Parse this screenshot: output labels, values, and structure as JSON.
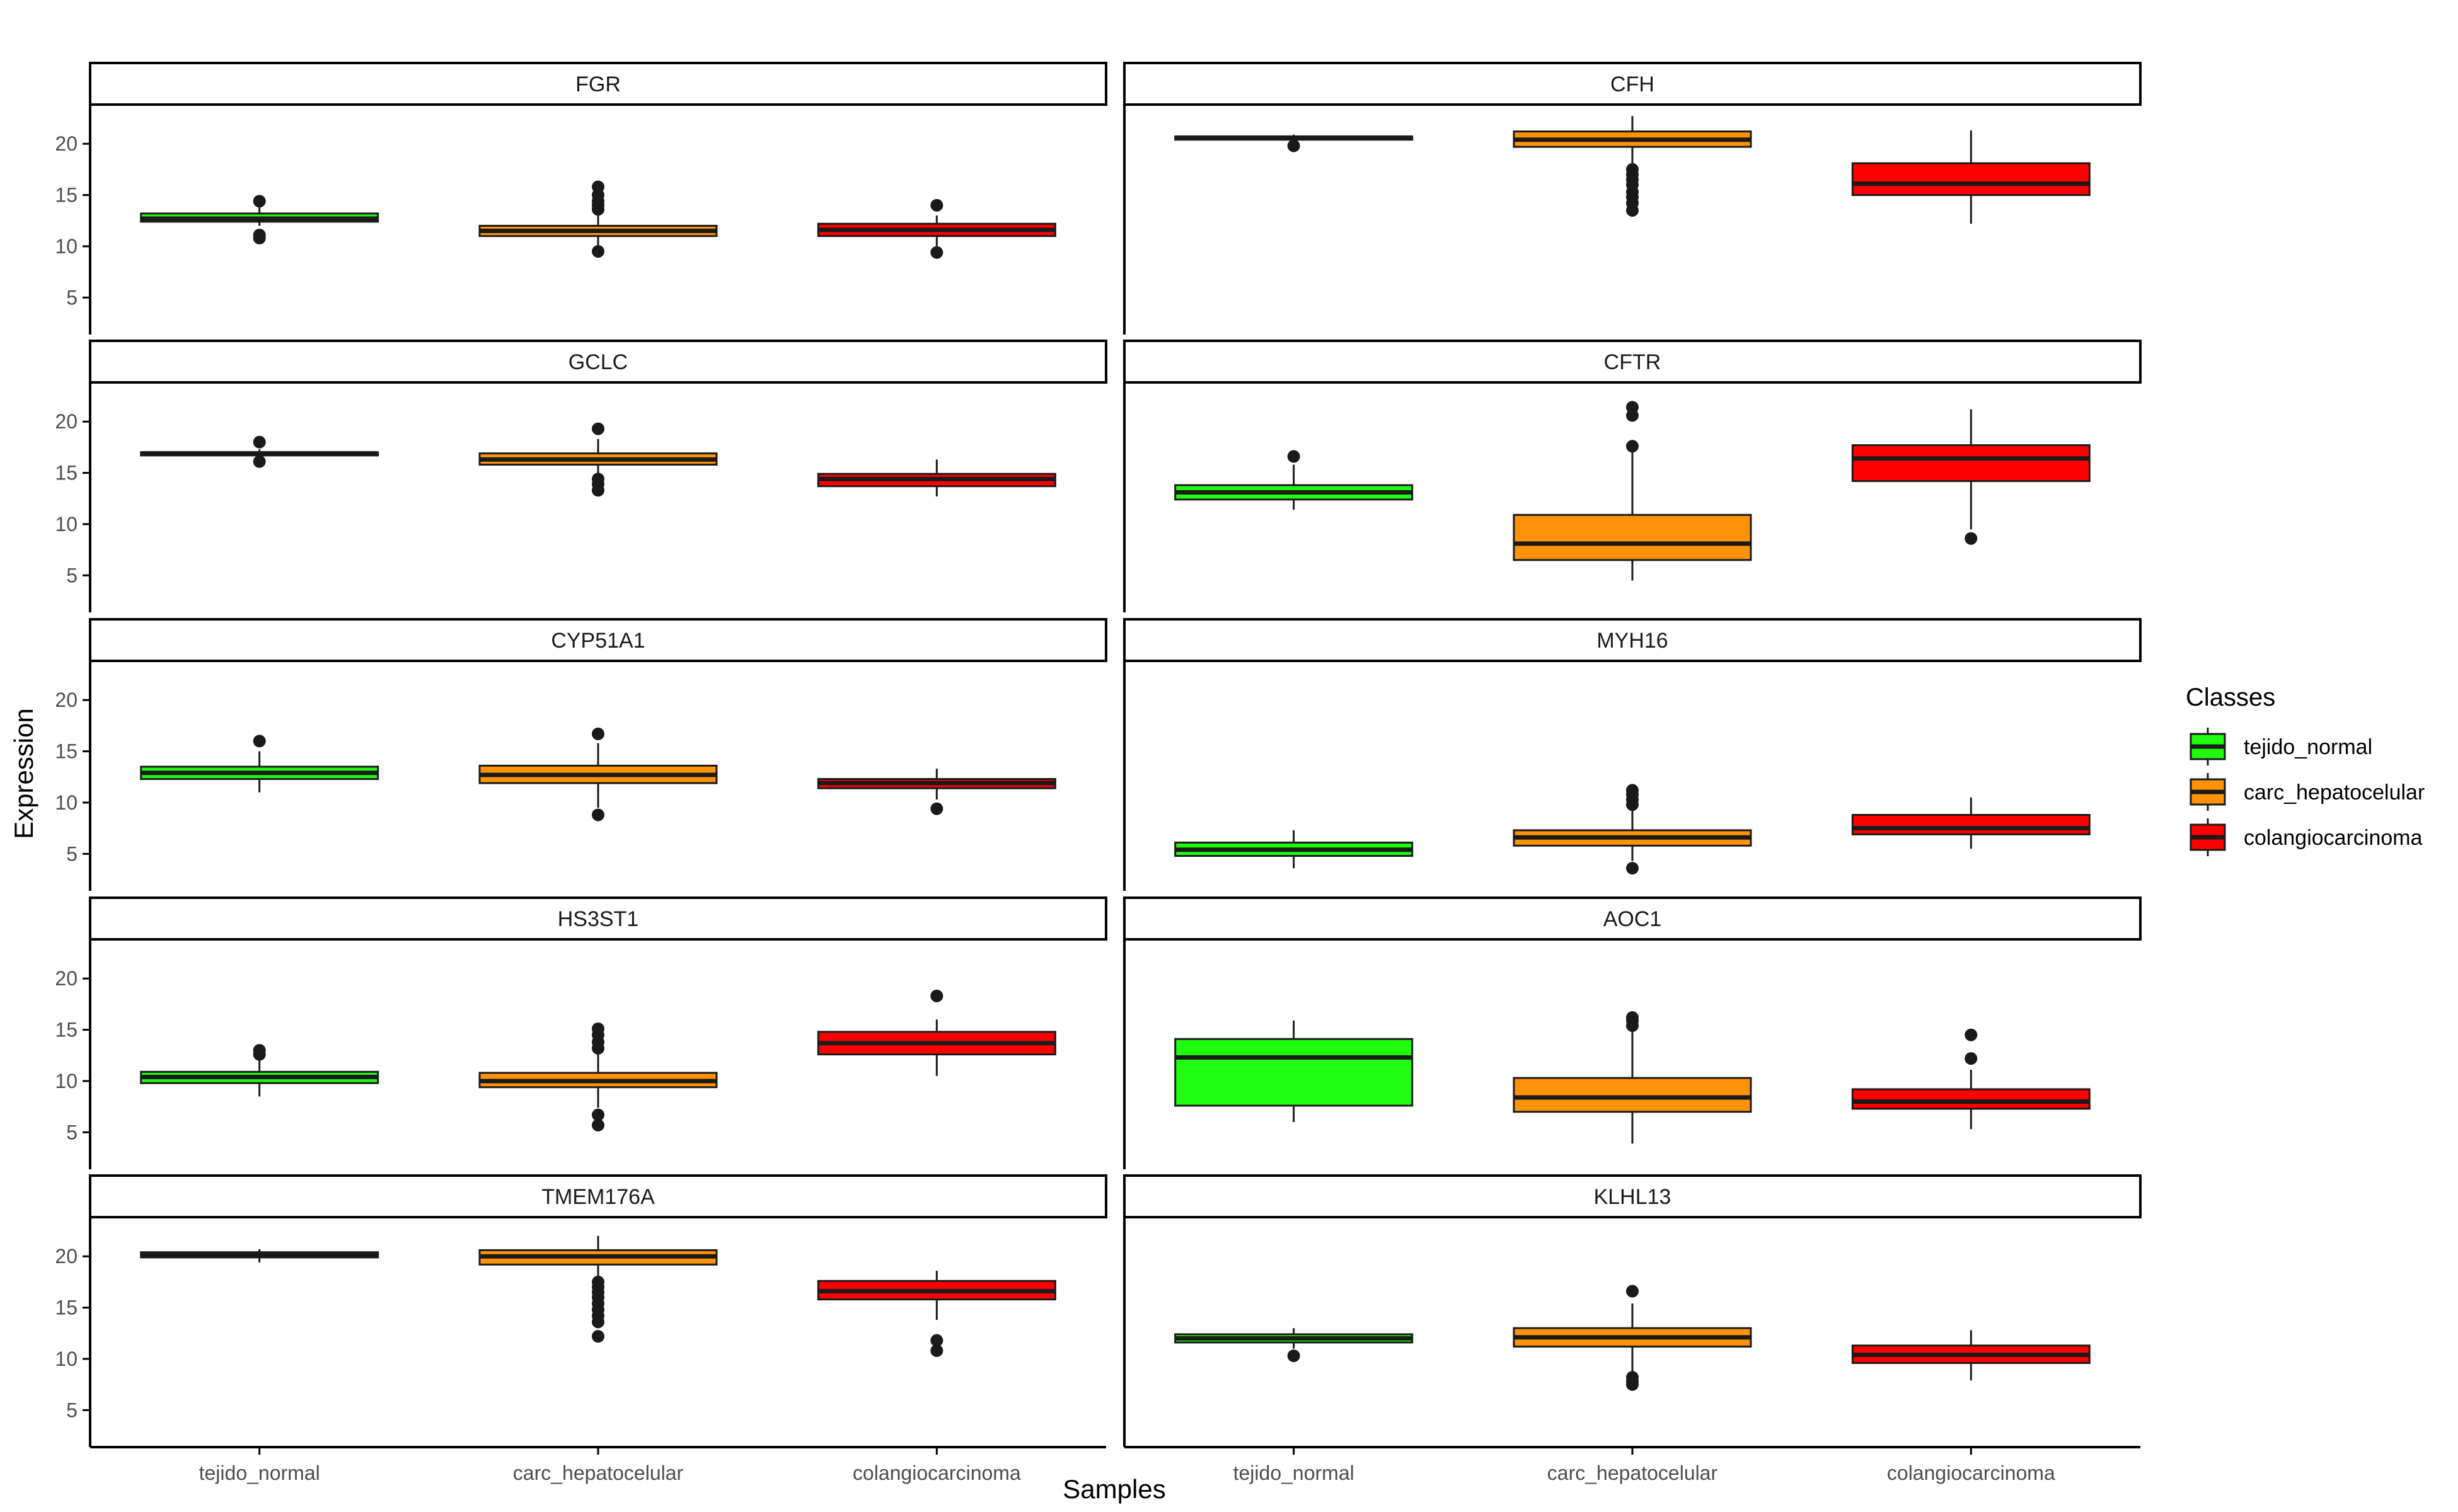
{
  "chart_data": {
    "type": "boxplot",
    "xlabel": "Samples",
    "ylabel": "Expression",
    "ylim": [
      2.5,
      23.7
    ],
    "yticks": [
      5,
      10,
      15,
      20
    ],
    "categories": [
      "tejido_normal",
      "carc_hepatocelular",
      "colangiocarcinoma"
    ],
    "colors": {
      "tejido_normal": "#1ffc10",
      "carc_hepatocelular": "#ff9308",
      "colangiocarcinoma": "#ff0000"
    },
    "legend": {
      "title": "Classes",
      "position": "right",
      "entries": [
        "tejido_normal",
        "carc_hepatocelular",
        "colangiocarcinoma"
      ]
    },
    "panels": [
      {
        "title": "FGR",
        "boxes": [
          {
            "category": "tejido_normal",
            "whisker_low": 12.0,
            "q1": 12.4,
            "median": 12.7,
            "q3": 13.2,
            "whisker_high": 13.8,
            "outliers": [
              14.4,
              11.1,
              10.8
            ]
          },
          {
            "category": "carc_hepatocelular",
            "whisker_low": 10.0,
            "q1": 11.0,
            "median": 11.5,
            "q3": 12.0,
            "whisker_high": 13.0,
            "outliers": [
              15.8,
              15.0,
              14.4,
              14.0,
              13.6,
              9.5
            ]
          },
          {
            "category": "colangiocarcinoma",
            "whisker_low": 10.0,
            "q1": 11.0,
            "median": 11.6,
            "q3": 12.2,
            "whisker_high": 13.0,
            "outliers": [
              14.0,
              9.4
            ]
          }
        ]
      },
      {
        "title": "CFH",
        "boxes": [
          {
            "category": "tejido_normal",
            "whisker_low": 20.1,
            "q1": 20.4,
            "median": 20.6,
            "q3": 20.7,
            "whisker_high": 20.9,
            "outliers": [
              19.8
            ]
          },
          {
            "category": "carc_hepatocelular",
            "whisker_low": 17.8,
            "q1": 19.7,
            "median": 20.4,
            "q3": 21.2,
            "whisker_high": 22.7,
            "outliers": [
              17.5,
              17.0,
              16.5,
              16.0,
              15.3,
              14.8,
              14.2,
              13.5
            ]
          },
          {
            "category": "colangiocarcinoma",
            "whisker_low": 12.2,
            "q1": 15.0,
            "median": 16.1,
            "q3": 18.1,
            "whisker_high": 21.3,
            "outliers": []
          }
        ]
      },
      {
        "title": "GCLC",
        "boxes": [
          {
            "category": "tejido_normal",
            "whisker_low": 16.5,
            "q1": 16.7,
            "median": 16.9,
            "q3": 17.0,
            "whisker_high": 17.3,
            "outliers": [
              18.0,
              16.1
            ]
          },
          {
            "category": "carc_hepatocelular",
            "whisker_low": 14.6,
            "q1": 15.8,
            "median": 16.3,
            "q3": 16.9,
            "whisker_high": 18.3,
            "outliers": [
              19.3,
              14.4,
              13.9,
              13.3
            ]
          },
          {
            "category": "colangiocarcinoma",
            "whisker_low": 12.7,
            "q1": 13.7,
            "median": 14.4,
            "q3": 14.9,
            "whisker_high": 16.3,
            "outliers": []
          }
        ]
      },
      {
        "title": "CFTR",
        "boxes": [
          {
            "category": "tejido_normal",
            "whisker_low": 11.4,
            "q1": 12.4,
            "median": 13.1,
            "q3": 13.8,
            "whisker_high": 15.8,
            "outliers": [
              16.6
            ]
          },
          {
            "category": "carc_hepatocelular",
            "whisker_low": 4.5,
            "q1": 6.5,
            "median": 8.1,
            "q3": 10.9,
            "whisker_high": 17.0,
            "outliers": [
              21.4,
              20.6,
              17.6
            ]
          },
          {
            "category": "colangiocarcinoma",
            "whisker_low": 9.5,
            "q1": 14.2,
            "median": 16.4,
            "q3": 17.7,
            "whisker_high": 21.2,
            "outliers": [
              8.6
            ]
          }
        ]
      },
      {
        "title": "CYP51A1",
        "boxes": [
          {
            "category": "tejido_normal",
            "whisker_low": 11.0,
            "q1": 12.3,
            "median": 12.9,
            "q3": 13.5,
            "whisker_high": 15.0,
            "outliers": [
              16.0
            ]
          },
          {
            "category": "carc_hepatocelular",
            "whisker_low": 9.5,
            "q1": 11.9,
            "median": 12.7,
            "q3": 13.6,
            "whisker_high": 15.8,
            "outliers": [
              16.7,
              8.8
            ]
          },
          {
            "category": "colangiocarcinoma",
            "whisker_low": 10.3,
            "q1": 11.4,
            "median": 11.9,
            "q3": 12.3,
            "whisker_high": 13.3,
            "outliers": [
              9.4
            ]
          }
        ]
      },
      {
        "title": "MYH16",
        "boxes": [
          {
            "category": "tejido_normal",
            "whisker_low": 3.6,
            "q1": 4.8,
            "median": 5.4,
            "q3": 6.1,
            "whisker_high": 7.3,
            "outliers": []
          },
          {
            "category": "carc_hepatocelular",
            "whisker_low": 4.3,
            "q1": 5.8,
            "median": 6.6,
            "q3": 7.3,
            "whisker_high": 9.4,
            "outliers": [
              11.2,
              10.8,
              10.3,
              9.8,
              3.6
            ]
          },
          {
            "category": "colangiocarcinoma",
            "whisker_low": 5.5,
            "q1": 6.9,
            "median": 7.5,
            "q3": 8.8,
            "whisker_high": 10.5,
            "outliers": []
          }
        ]
      },
      {
        "title": "HS3ST1",
        "boxes": [
          {
            "category": "tejido_normal",
            "whisker_low": 8.5,
            "q1": 9.8,
            "median": 10.4,
            "q3": 10.9,
            "whisker_high": 12.2,
            "outliers": [
              13.0,
              12.6
            ]
          },
          {
            "category": "carc_hepatocelular",
            "whisker_low": 7.4,
            "q1": 9.4,
            "median": 10.0,
            "q3": 10.8,
            "whisker_high": 12.9,
            "outliers": [
              15.1,
              14.5,
              13.8,
              13.2,
              6.7,
              5.7
            ]
          },
          {
            "category": "colangiocarcinoma",
            "whisker_low": 10.5,
            "q1": 12.6,
            "median": 13.7,
            "q3": 14.8,
            "whisker_high": 16.0,
            "outliers": [
              18.3
            ]
          }
        ]
      },
      {
        "title": "AOC1",
        "boxes": [
          {
            "category": "tejido_normal",
            "whisker_low": 6.0,
            "q1": 7.6,
            "median": 12.3,
            "q3": 14.1,
            "whisker_high": 15.9,
            "outliers": []
          },
          {
            "category": "carc_hepatocelular",
            "whisker_low": 3.9,
            "q1": 7.0,
            "median": 8.4,
            "q3": 10.3,
            "whisker_high": 15.0,
            "outliers": [
              16.2,
              15.9,
              15.4
            ]
          },
          {
            "category": "colangiocarcinoma",
            "whisker_low": 5.3,
            "q1": 7.3,
            "median": 8.0,
            "q3": 9.2,
            "whisker_high": 11.1,
            "outliers": [
              14.5,
              12.2
            ]
          }
        ]
      },
      {
        "title": "TMEM176A",
        "boxes": [
          {
            "category": "tejido_normal",
            "whisker_low": 19.4,
            "q1": 19.9,
            "median": 20.1,
            "q3": 20.4,
            "whisker_high": 20.7,
            "outliers": []
          },
          {
            "category": "carc_hepatocelular",
            "whisker_low": 17.8,
            "q1": 19.2,
            "median": 20.0,
            "q3": 20.6,
            "whisker_high": 22.0,
            "outliers": [
              17.5,
              17.0,
              16.5,
              16.0,
              15.4,
              14.8,
              14.2,
              13.6,
              12.2
            ]
          },
          {
            "category": "colangiocarcinoma",
            "whisker_low": 13.8,
            "q1": 15.8,
            "median": 16.6,
            "q3": 17.6,
            "whisker_high": 18.6,
            "outliers": [
              11.8,
              10.8
            ]
          }
        ]
      },
      {
        "title": "KLHL13",
        "boxes": [
          {
            "category": "tejido_normal",
            "whisker_low": 11.0,
            "q1": 11.6,
            "median": 12.0,
            "q3": 12.4,
            "whisker_high": 13.0,
            "outliers": [
              10.3
            ]
          },
          {
            "category": "carc_hepatocelular",
            "whisker_low": 8.5,
            "q1": 11.2,
            "median": 12.1,
            "q3": 13.0,
            "whisker_high": 15.4,
            "outliers": [
              16.6,
              8.2,
              7.8,
              7.5
            ]
          },
          {
            "category": "colangiocarcinoma",
            "whisker_low": 7.9,
            "q1": 9.6,
            "median": 10.4,
            "q3": 11.3,
            "whisker_high": 12.8,
            "outliers": []
          }
        ]
      }
    ]
  }
}
